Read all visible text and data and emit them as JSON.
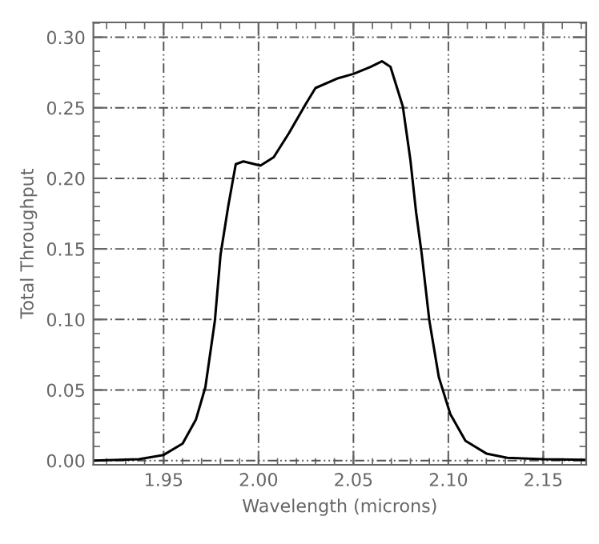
{
  "chart_data": {
    "type": "line",
    "xlabel": "Wavelength (microns)",
    "ylabel": "Total Throughput",
    "xlim": [
      1.913,
      2.1726
    ],
    "ylim": [
      -0.003,
      0.3105
    ],
    "xticks": [
      {
        "value": 1.95,
        "label": "1.95"
      },
      {
        "value": 2.0,
        "label": "2.00"
      },
      {
        "value": 2.05,
        "label": "2.05"
      },
      {
        "value": 2.1,
        "label": "2.10"
      },
      {
        "value": 2.15,
        "label": "2.15"
      }
    ],
    "yticks": [
      {
        "value": 0.0,
        "label": "0.00"
      },
      {
        "value": 0.05,
        "label": "0.05"
      },
      {
        "value": 0.1,
        "label": "0.10"
      },
      {
        "value": 0.15,
        "label": "0.15"
      },
      {
        "value": 0.2,
        "label": "0.20"
      },
      {
        "value": 0.25,
        "label": "0.25"
      },
      {
        "value": 0.3,
        "label": "0.30"
      }
    ],
    "grid": true,
    "line_style": "solid",
    "marker": "none",
    "series": [
      {
        "color": "#000000",
        "x": [
          1.913,
          1.937,
          1.95,
          1.96,
          1.967,
          1.972,
          1.977,
          1.98,
          1.984,
          1.988,
          1.992,
          2.001,
          2.008,
          2.016,
          2.025,
          2.03,
          2.042,
          2.05,
          2.059,
          2.065,
          2.0695,
          2.076,
          2.08,
          2.083,
          2.086,
          2.09,
          2.095,
          2.101,
          2.109,
          2.12,
          2.131,
          2.15,
          2.1726
        ],
        "values": [
          0.0,
          0.001,
          0.004,
          0.012,
          0.029,
          0.052,
          0.099,
          0.146,
          0.18,
          0.21,
          0.212,
          0.209,
          0.215,
          0.232,
          0.253,
          0.264,
          0.271,
          0.274,
          0.279,
          0.283,
          0.279,
          0.251,
          0.213,
          0.176,
          0.146,
          0.099,
          0.059,
          0.033,
          0.014,
          0.005,
          0.002,
          0.001,
          0.0005
        ]
      }
    ]
  }
}
